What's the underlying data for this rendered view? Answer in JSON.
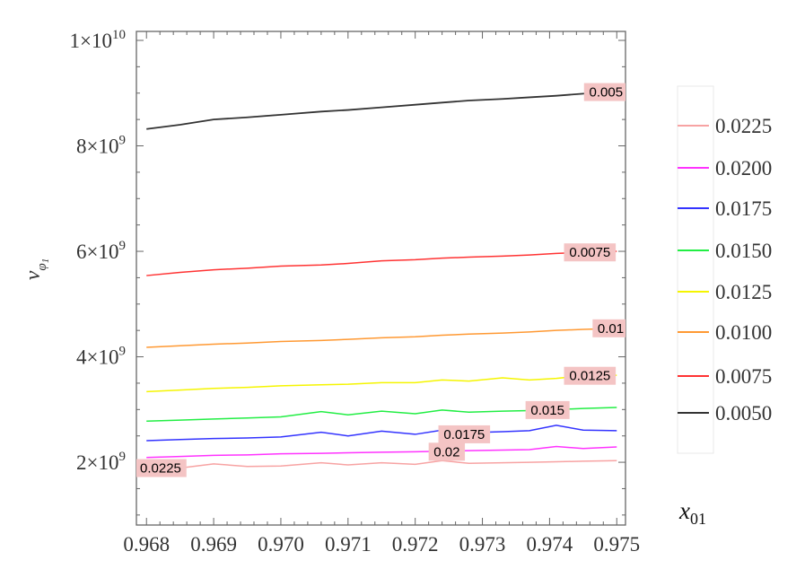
{
  "chart_data": {
    "type": "line",
    "title": "",
    "xlabel": "",
    "ylabel_base": "v",
    "ylabel_sub": "φ",
    "ylabel_subsub": "1",
    "xlim": [
      0.96785,
      0.97513
    ],
    "ylim": [
      810000000.0,
      10170000000.0
    ],
    "x_ticks": [
      {
        "value": 0.968,
        "label": "0.968"
      },
      {
        "value": 0.969,
        "label": "0.969"
      },
      {
        "value": 0.97,
        "label": "0.970"
      },
      {
        "value": 0.971,
        "label": "0.971"
      },
      {
        "value": 0.972,
        "label": "0.972"
      },
      {
        "value": 0.973,
        "label": "0.973"
      },
      {
        "value": 0.974,
        "label": "0.974"
      },
      {
        "value": 0.975,
        "label": "0.975"
      }
    ],
    "y_ticks": [
      {
        "value": 2000000000.0,
        "mant": "2",
        "exp": "9"
      },
      {
        "value": 4000000000.0,
        "mant": "4",
        "exp": "9"
      },
      {
        "value": 6000000000.0,
        "mant": "6",
        "exp": "9"
      },
      {
        "value": 8000000000.0,
        "mant": "8",
        "exp": "9"
      },
      {
        "value": 10000000000.0,
        "mant": "1",
        "exp": "10"
      }
    ],
    "times_sign": "×",
    "tick_base": "10",
    "legend_title_base": "x",
    "legend_title_sub": "01",
    "legend_placement": "right",
    "x": [
      0.968,
      0.9685,
      0.969,
      0.9695,
      0.97,
      0.9706,
      0.971,
      0.9715,
      0.972,
      0.9724,
      0.9728,
      0.9733,
      0.9737,
      0.9741,
      0.9745,
      0.975
    ],
    "series": [
      {
        "name": "0.0225",
        "contour_label": "0.0225",
        "label_at": [
          0.96821,
          1890000000.0
        ],
        "color": "#f7a3a3",
        "values_e9": [
          1.88,
          1.89,
          1.97,
          1.92,
          1.93,
          1.99,
          1.95,
          1.99,
          1.96,
          2.03,
          1.98,
          1.99,
          2.0,
          2.01,
          2.02,
          2.03
        ]
      },
      {
        "name": "0.0200",
        "contour_label": "0.02",
        "label_at": [
          0.97247,
          2200000000.0
        ],
        "color": "#ff33ff",
        "values_e9": [
          2.09,
          2.11,
          2.13,
          2.14,
          2.16,
          2.17,
          2.18,
          2.19,
          2.2,
          2.21,
          2.22,
          2.23,
          2.24,
          2.3,
          2.26,
          2.29
        ]
      },
      {
        "name": "0.0175",
        "contour_label": "0.0175",
        "label_at": [
          0.97273,
          2530000000.0
        ],
        "color": "#3333ff",
        "values_e9": [
          2.41,
          2.43,
          2.45,
          2.46,
          2.48,
          2.57,
          2.5,
          2.59,
          2.53,
          2.61,
          2.56,
          2.58,
          2.6,
          2.7,
          2.61,
          2.6
        ]
      },
      {
        "name": "0.0150",
        "contour_label": "0.015",
        "label_at": [
          0.97397,
          2990000000.0
        ],
        "color": "#22ee44",
        "values_e9": [
          2.78,
          2.8,
          2.82,
          2.84,
          2.86,
          2.96,
          2.9,
          2.97,
          2.92,
          2.99,
          2.95,
          2.97,
          2.98,
          3.0,
          3.02,
          3.04
        ]
      },
      {
        "name": "0.0125",
        "contour_label": "0.0125",
        "label_at": [
          0.9746,
          3640000000.0
        ],
        "color": "#f5f500",
        "values_e9": [
          3.34,
          3.37,
          3.4,
          3.42,
          3.45,
          3.47,
          3.48,
          3.51,
          3.51,
          3.56,
          3.54,
          3.6,
          3.56,
          3.59,
          3.64,
          3.65
        ]
      },
      {
        "name": "0.0100",
        "contour_label": "0.01",
        "label_at": [
          0.97491,
          4540000000.0
        ],
        "color": "#ff9933",
        "values_e9": [
          4.18,
          4.21,
          4.24,
          4.26,
          4.29,
          4.31,
          4.33,
          4.36,
          4.38,
          4.41,
          4.43,
          4.45,
          4.47,
          4.5,
          4.52,
          4.54
        ]
      },
      {
        "name": "0.0075",
        "contour_label": "0.0075",
        "label_at": [
          0.9746,
          5980000000.0
        ],
        "color": "#ff3333",
        "values_e9": [
          5.54,
          5.6,
          5.65,
          5.68,
          5.72,
          5.74,
          5.77,
          5.82,
          5.84,
          5.87,
          5.89,
          5.91,
          5.93,
          5.96,
          5.98,
          6.0
        ]
      },
      {
        "name": "0.0050",
        "contour_label": "0.005",
        "label_at": [
          0.97484,
          9020000000.0
        ],
        "color": "#333333",
        "values_e9": [
          8.32,
          8.4,
          8.5,
          8.54,
          8.59,
          8.65,
          8.68,
          8.73,
          8.78,
          8.82,
          8.86,
          8.89,
          8.92,
          8.95,
          8.99,
          9.04
        ]
      }
    ],
    "legend_order": [
      "0.0225",
      "0.0200",
      "0.0175",
      "0.0150",
      "0.0125",
      "0.0100",
      "0.0075",
      "0.0050"
    ],
    "label_background": "#f4c4c4"
  }
}
